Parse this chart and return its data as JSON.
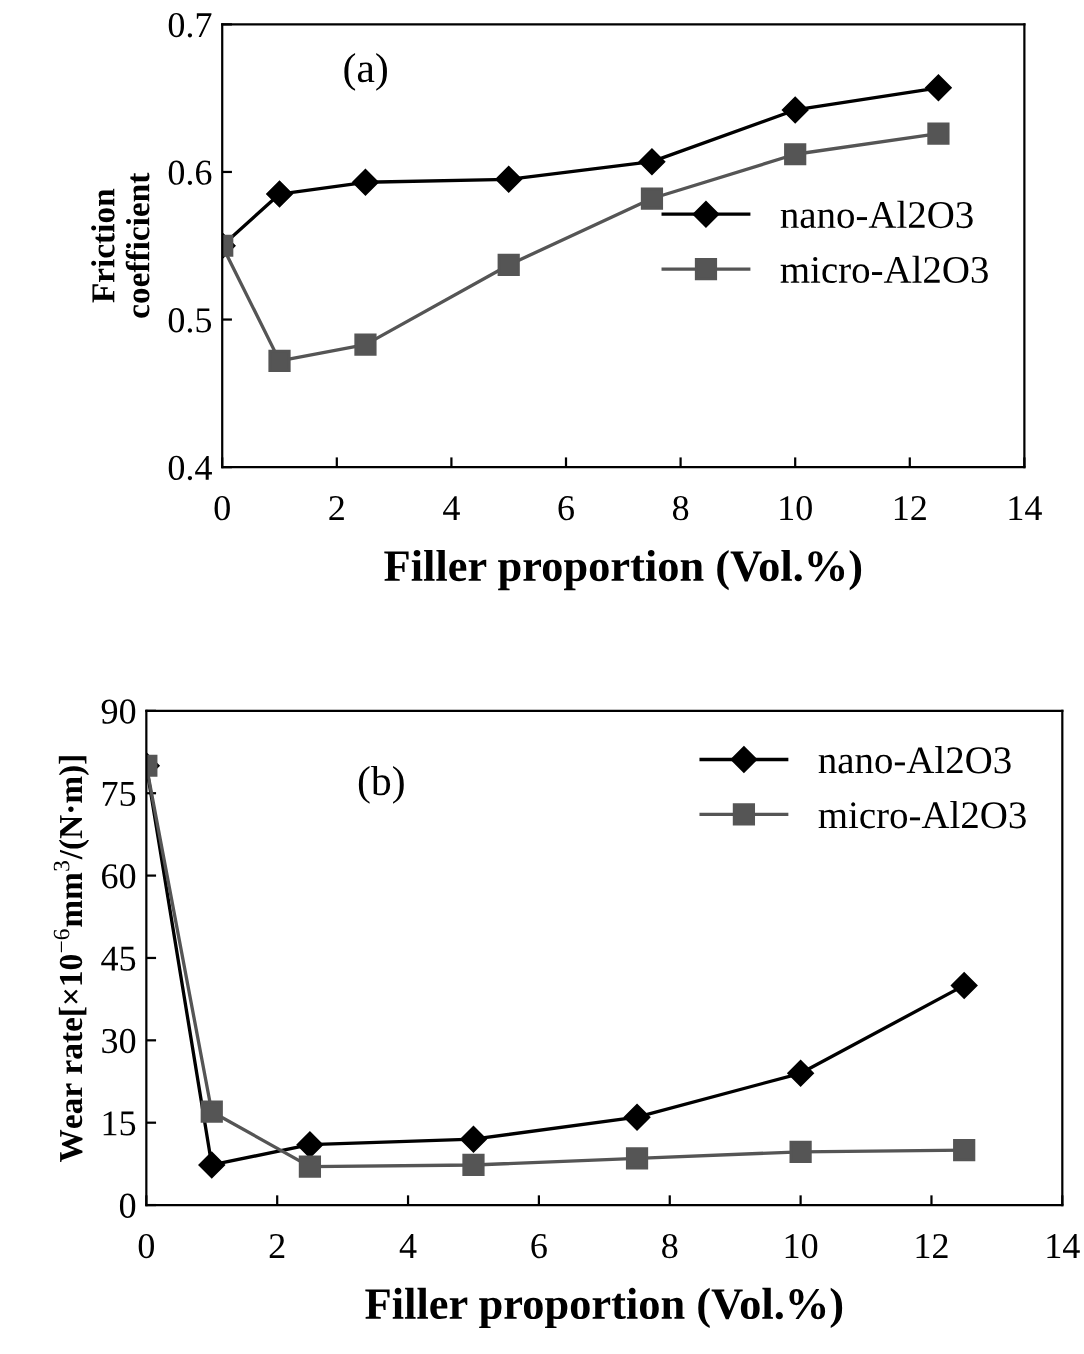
{
  "chart_data": [
    {
      "type": "line",
      "xlabel": "Filler proportion (Vol.%)",
      "ylabel": "Friction\ncoefficient",
      "annotations": [
        "(a)"
      ],
      "x": [
        0,
        1,
        2.5,
        5,
        7.5,
        10,
        12.5
      ],
      "series": [
        {
          "name": "nano-Al2O3",
          "color": "#000000",
          "marker": "diamond",
          "values": [
            0.55,
            0.585,
            0.593,
            0.595,
            0.607,
            0.642,
            0.657
          ]
        },
        {
          "name": "micro-Al2O3",
          "color": "#555555",
          "marker": "square",
          "values": [
            0.55,
            0.472,
            0.483,
            0.537,
            0.582,
            0.612,
            0.626
          ]
        }
      ],
      "xlim": [
        0,
        14
      ],
      "xticks": [
        0,
        2,
        4,
        6,
        8,
        10,
        12,
        14
      ],
      "ylim": [
        0.4,
        0.7
      ],
      "yticks": [
        0.4,
        0.5,
        0.6,
        0.7
      ],
      "grid": false,
      "legend": "right",
      "line_style": "solid"
    },
    {
      "type": "line",
      "xlabel": "Filler proportion (Vol.%)",
      "ylabel": "Wear rate[×10$^{−6}$mm$^{3}$/(N·m)]",
      "annotations": [
        "(b)"
      ],
      "x": [
        0,
        1,
        2.5,
        5,
        7.5,
        10,
        12.5
      ],
      "series": [
        {
          "name": "nano-Al2O3",
          "color": "#000000",
          "marker": "diamond",
          "values": [
            80,
            7.3,
            11,
            12,
            16,
            24,
            40
          ]
        },
        {
          "name": "micro-Al2O3",
          "color": "#555555",
          "marker": "square",
          "values": [
            80,
            17,
            7,
            7.3,
            8.5,
            9.7,
            10
          ]
        }
      ],
      "xlim": [
        0,
        14
      ],
      "xticks": [
        0,
        2,
        4,
        6,
        8,
        10,
        12,
        14
      ],
      "ylim": [
        0,
        90
      ],
      "yticks": [
        0,
        15,
        30,
        45,
        60,
        75,
        90
      ],
      "grid": false,
      "legend": "top right",
      "line_style": "solid"
    }
  ]
}
